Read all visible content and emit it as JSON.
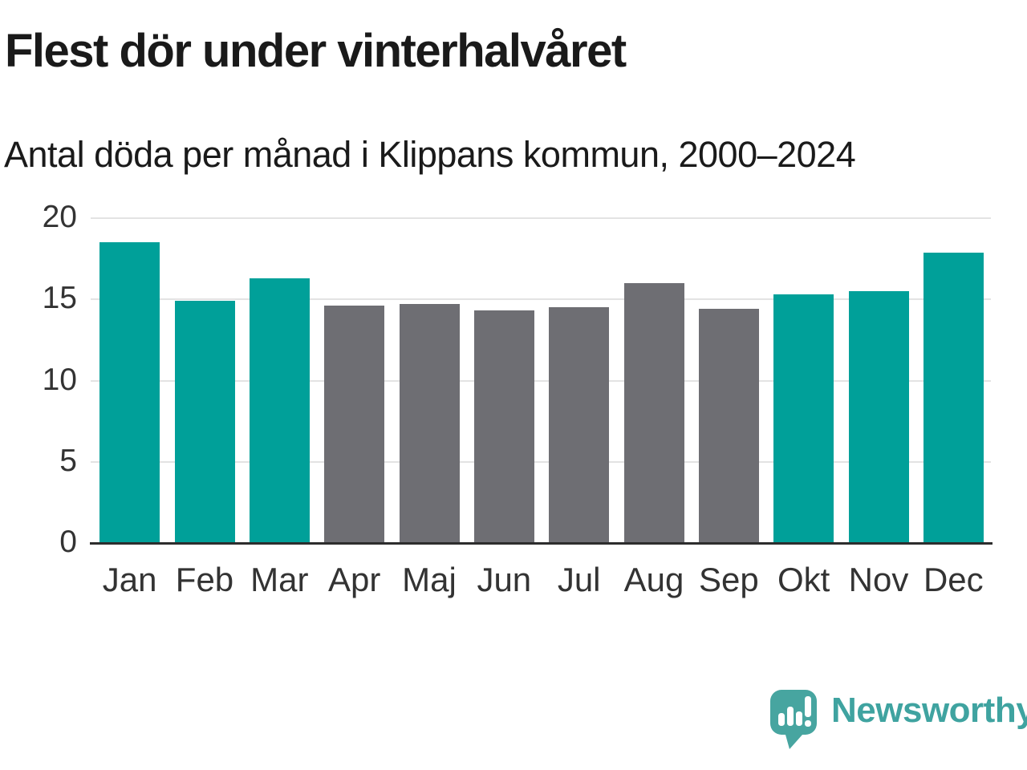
{
  "chart_data": {
    "type": "bar",
    "title": "Flest dör under vinterhalvåret",
    "subtitle": "Antal döda per månad i Klippans kommun, 2000–2024",
    "categories": [
      "Jan",
      "Feb",
      "Mar",
      "Apr",
      "Maj",
      "Jun",
      "Jul",
      "Aug",
      "Sep",
      "Okt",
      "Nov",
      "Dec"
    ],
    "values": [
      18.5,
      14.9,
      16.3,
      14.6,
      14.7,
      14.3,
      14.5,
      16.0,
      14.4,
      15.3,
      15.5,
      17.9
    ],
    "bar_groups": [
      "winter",
      "winter",
      "winter",
      "summer",
      "summer",
      "summer",
      "summer",
      "summer",
      "summer",
      "winter",
      "winter",
      "winter"
    ],
    "palette": {
      "winter": "#00a099",
      "summer": "#6e6e73"
    },
    "xlabel": "",
    "ylabel": "",
    "ylim": [
      0,
      20
    ],
    "yticks": [
      0,
      5,
      10,
      15,
      20
    ],
    "grid": true,
    "legend": null,
    "gridline_color": "#e3e3e3",
    "axis_line_color": "#2d2d2d",
    "tick_label_color": "#333333"
  },
  "footer": {
    "brand": "Newsworthy",
    "brand_color": "#3fa3a0",
    "logo_icon": "newsworthy-pin-barchart-icon",
    "logo_color": "#47a5a0"
  }
}
